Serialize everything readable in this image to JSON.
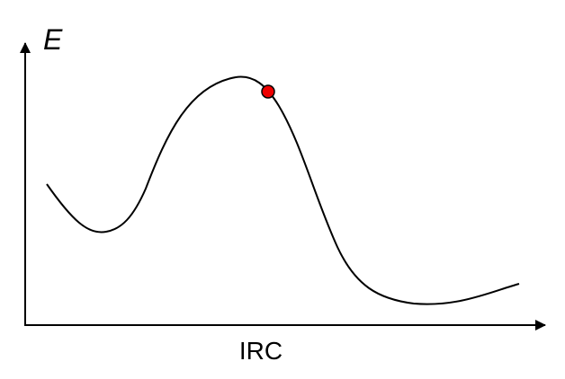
{
  "diagram": {
    "y_axis_label": "E",
    "x_axis_label": "IRC",
    "curve_color": "#000000",
    "marker_color": "#ee0000"
  }
}
